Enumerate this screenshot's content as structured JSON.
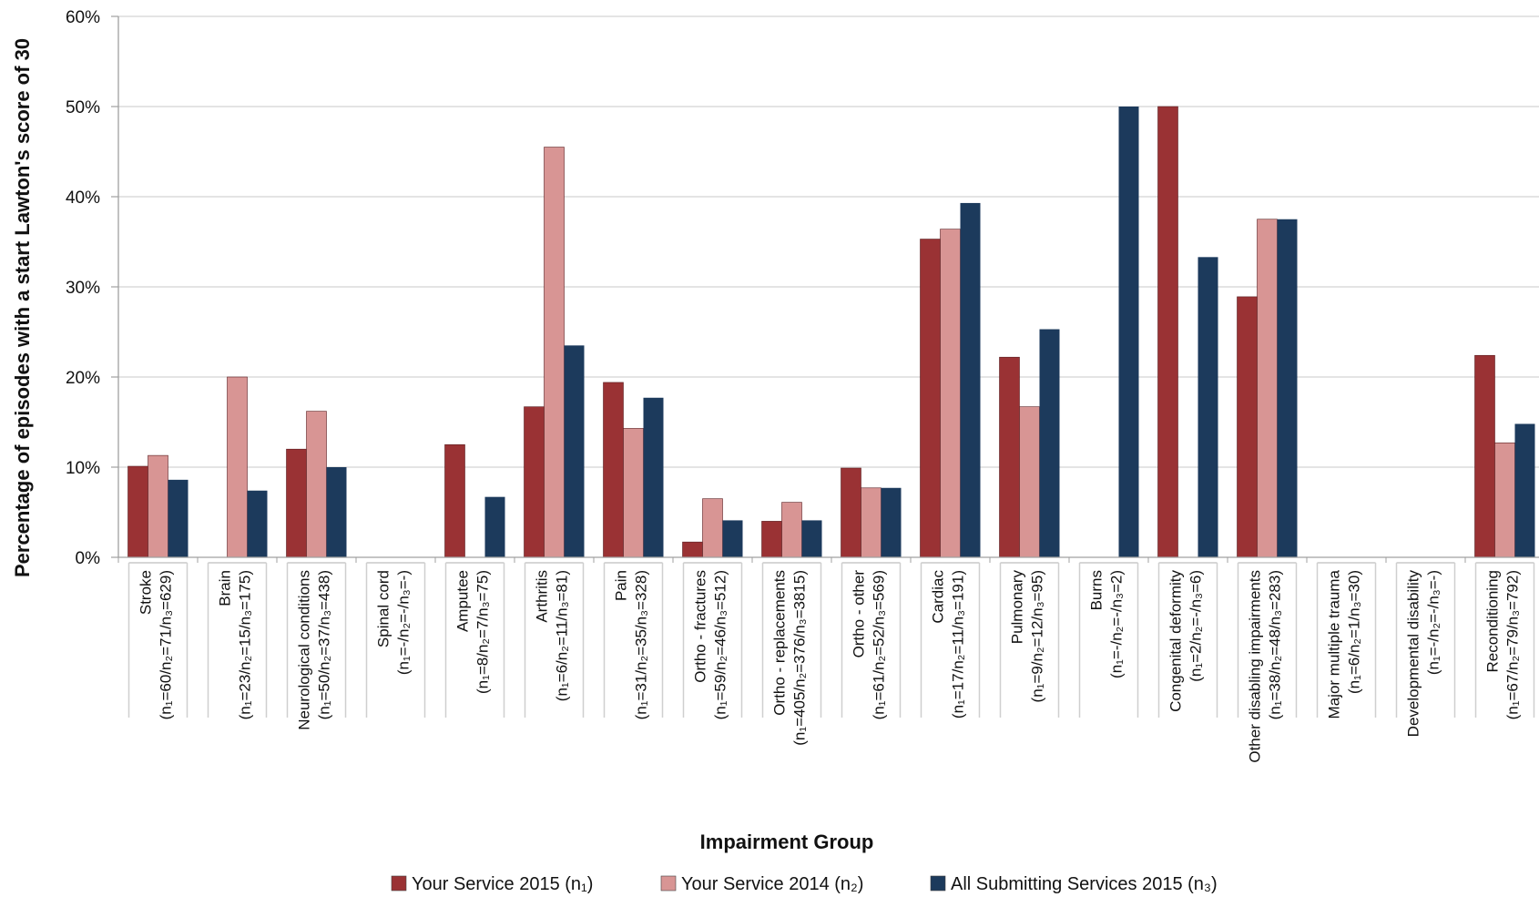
{
  "chart_data": {
    "type": "bar",
    "ylabel": "Percentage of  episodes with a start Lawton's score of 30",
    "xlabel": "Impairment Group",
    "ylim": [
      0,
      60
    ],
    "yticks": [
      "0%",
      "10%",
      "20%",
      "30%",
      "40%",
      "50%",
      "60%"
    ],
    "grid": true,
    "legend_position": "bottom",
    "colors": [
      "#9a3234",
      "#d89594",
      "#1c3a5c"
    ],
    "categories": [
      {
        "name": "Stroke",
        "counts": "(n₁=60/n₂=71/n₃=629)"
      },
      {
        "name": "Brain",
        "counts": "(n₁=23/n₂=15/n₃=175)"
      },
      {
        "name": "Neurological conditions",
        "counts": "(n₁=50/n₂=37/n₃=438)"
      },
      {
        "name": "Spinal cord",
        "counts": "(n₁=-/n₂=-/n₃=-)"
      },
      {
        "name": "Amputee",
        "counts": "(n₁=8/n₂=7/n₃=75)"
      },
      {
        "name": "Arthritis",
        "counts": "(n₁=6/n₂=11/n₃=81)"
      },
      {
        "name": "Pain",
        "counts": "(n₁=31/n₂=35/n₃=328)"
      },
      {
        "name": "Ortho - fractures",
        "counts": "(n₁=59/n₂=46/n₃=512)"
      },
      {
        "name": "Ortho - replacements",
        "counts": "(n₁=405/n₂=376/n₃=3815)"
      },
      {
        "name": "Ortho - other",
        "counts": "(n₁=61/n₂=52/n₃=569)"
      },
      {
        "name": "Cardiac",
        "counts": "(n₁=17/n₂=11/n₃=191)"
      },
      {
        "name": "Pulmonary",
        "counts": "(n₁=9/n₂=12/n₃=95)"
      },
      {
        "name": "Burns",
        "counts": "(n₁=-/n₂=-/n₃=2)"
      },
      {
        "name": "Congenital deformity",
        "counts": "(n₁=2/n₂=-/n₃=6)"
      },
      {
        "name": "Other disabling impairments",
        "counts": "(n₁=38/n₂=48/n₃=283)"
      },
      {
        "name": "Major multiple trauma",
        "counts": "(n₁=6/n₂=1/n₃=30)"
      },
      {
        "name": "Developmental disability",
        "counts": "(n₁=-/n₂=-/n₃=-)"
      },
      {
        "name": "Reconditioning",
        "counts": "(n₁=67/n₂=79/n₃=792)"
      }
    ],
    "series": [
      {
        "name": "Your Service 2015 (n₁)",
        "values": [
          10.1,
          0,
          12.0,
          0,
          12.5,
          16.7,
          19.4,
          1.7,
          4.0,
          9.9,
          35.3,
          22.2,
          0,
          50.0,
          28.9,
          0,
          0,
          22.4
        ]
      },
      {
        "name": "Your Service 2014 (n₂)",
        "values": [
          11.3,
          20.0,
          16.2,
          0,
          0,
          45.5,
          14.3,
          6.5,
          6.1,
          7.7,
          36.4,
          16.7,
          0,
          0,
          37.5,
          0,
          0,
          12.7
        ]
      },
      {
        "name": "All Submitting Services 2015 (n₃)",
        "values": [
          8.6,
          7.4,
          10.0,
          0,
          6.7,
          23.5,
          17.7,
          4.1,
          4.1,
          7.7,
          39.3,
          25.3,
          50.0,
          33.3,
          37.5,
          0,
          0,
          14.8
        ]
      }
    ]
  }
}
